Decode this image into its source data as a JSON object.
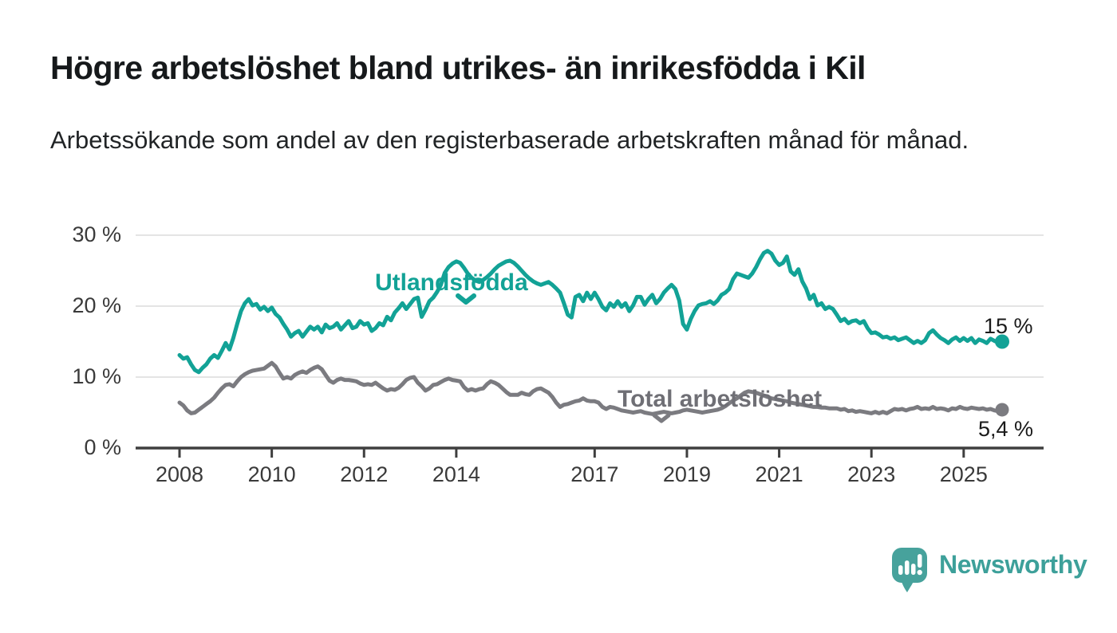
{
  "title": "Högre arbetslöshet bland utrikes- än inrikesfödda i Kil",
  "subtitle": "Arbetssökande som andel av den registerbaserade arbetskraften månad för månad.",
  "branding": {
    "logo_text": "Newsworthy",
    "logo_icon": "speech-bubble-bar-chart",
    "logo_color": "#47a29c",
    "logo_text_color": "#3da09a"
  },
  "colors": {
    "background": "#ffffff",
    "grid": "#dcdcdc",
    "axis": "#3f3f3f",
    "tick_text": "#3a3a3a",
    "title_text": "#16191b",
    "series_teal": "#12a296",
    "series_gray": "#7b7b80"
  },
  "chart_data": {
    "type": "line",
    "title": "Högre arbetslöshet bland utrikes- än inrikesfödda i Kil",
    "subtitle": "Arbetssökande som andel av den registerbaserade arbetskraften månad för månad.",
    "x_unit": "month",
    "x_start": "2008-01",
    "x_end": "2025-11",
    "ylim": [
      0,
      30
    ],
    "grid": "horizontal",
    "legend": "inline-annotations",
    "yticks": {
      "values": [
        0,
        10,
        20,
        30
      ],
      "labels": [
        "0 %",
        "10 %",
        "20 %",
        "30 %"
      ]
    },
    "xticks": {
      "values": [
        2008,
        2010,
        2012,
        2014,
        2017,
        2019,
        2021,
        2023,
        2025
      ],
      "labels": [
        "2008",
        "2010",
        "2012",
        "2014",
        "2017",
        "2019",
        "2021",
        "2023",
        "2025"
      ]
    },
    "series": [
      {
        "name": "Utlandsfödda",
        "color": "#12a296",
        "end_label": "15 %",
        "end_value": 15.0,
        "values": [
          13.1,
          12.6,
          12.8,
          11.8,
          11.0,
          10.7,
          11.3,
          11.8,
          12.6,
          13.1,
          12.7,
          13.7,
          14.8,
          13.9,
          15.5,
          17.5,
          19.3,
          20.4,
          21.0,
          20.1,
          20.3,
          19.5,
          19.9,
          19.3,
          19.8,
          18.9,
          18.4,
          17.5,
          16.7,
          15.7,
          16.2,
          16.5,
          15.7,
          16.4,
          17.1,
          16.7,
          17.1,
          16.3,
          17.4,
          16.9,
          17.1,
          17.6,
          16.7,
          17.3,
          17.9,
          16.9,
          17.1,
          17.9,
          17.4,
          17.6,
          16.5,
          16.9,
          17.6,
          17.3,
          18.5,
          18.0,
          19.1,
          19.7,
          20.4,
          19.6,
          20.3,
          21.0,
          21.2,
          18.5,
          19.5,
          20.7,
          21.2,
          22.0,
          23.0,
          24.7,
          25.5,
          26.0,
          26.3,
          26.1,
          25.4,
          24.6,
          24.0,
          23.6,
          23.4,
          23.7,
          24.1,
          24.6,
          25.2,
          25.7,
          26.0,
          26.3,
          26.4,
          26.1,
          25.6,
          25.0,
          24.4,
          23.9,
          23.5,
          23.2,
          23.0,
          23.2,
          23.4,
          23.0,
          22.5,
          21.9,
          20.4,
          18.8,
          18.4,
          21.3,
          21.6,
          20.7,
          21.9,
          21.0,
          21.9,
          21.0,
          19.9,
          19.4,
          20.4,
          19.9,
          20.7,
          19.9,
          20.4,
          19.3,
          20.1,
          21.3,
          21.3,
          20.2,
          21.0,
          21.6,
          20.4,
          21.0,
          21.9,
          22.5,
          23.0,
          22.4,
          20.8,
          17.5,
          16.7,
          18.2,
          19.3,
          20.1,
          20.3,
          20.4,
          20.7,
          20.3,
          20.8,
          21.6,
          21.9,
          22.4,
          23.8,
          24.6,
          24.4,
          24.2,
          24.0,
          24.6,
          25.5,
          26.6,
          27.5,
          27.8,
          27.4,
          26.4,
          25.8,
          26.1,
          27.0,
          24.9,
          24.4,
          25.2,
          23.5,
          22.5,
          21.0,
          21.6,
          20.1,
          20.4,
          19.6,
          19.9,
          19.6,
          18.8,
          17.9,
          18.2,
          17.6,
          17.9,
          18.0,
          17.6,
          17.9,
          16.9,
          16.2,
          16.3,
          16.0,
          15.6,
          15.7,
          15.4,
          15.6,
          15.2,
          15.4,
          15.6,
          15.2,
          14.8,
          15.1,
          14.8,
          15.2,
          16.2,
          16.6,
          16.0,
          15.5,
          15.2,
          14.8,
          15.3,
          15.6,
          15.1,
          15.5,
          15.1,
          15.5,
          14.8,
          15.3,
          15.1,
          14.8,
          15.4,
          15.1,
          14.9,
          15.0
        ]
      },
      {
        "name": "Total arbetslöshet",
        "color": "#7b7b80",
        "end_label": "5,4 %",
        "end_value": 5.4,
        "values": [
          6.4,
          6.0,
          5.3,
          4.9,
          5.0,
          5.4,
          5.8,
          6.2,
          6.6,
          7.1,
          7.8,
          8.4,
          8.9,
          9.0,
          8.7,
          9.4,
          10.0,
          10.4,
          10.7,
          10.9,
          11.0,
          11.1,
          11.2,
          11.6,
          12.0,
          11.5,
          10.6,
          9.8,
          10.0,
          9.8,
          10.3,
          10.6,
          10.8,
          10.6,
          11.0,
          11.3,
          11.5,
          11.1,
          10.3,
          9.5,
          9.2,
          9.6,
          9.8,
          9.6,
          9.6,
          9.5,
          9.4,
          9.1,
          8.9,
          9.0,
          8.9,
          9.2,
          8.8,
          8.4,
          8.1,
          8.3,
          8.2,
          8.5,
          9.0,
          9.6,
          9.9,
          10.0,
          9.2,
          8.7,
          8.1,
          8.4,
          8.9,
          9.0,
          9.3,
          9.6,
          9.8,
          9.6,
          9.5,
          9.4,
          8.6,
          8.1,
          8.3,
          8.1,
          8.3,
          8.4,
          9.0,
          9.4,
          9.2,
          8.9,
          8.4,
          7.9,
          7.5,
          7.5,
          7.5,
          7.8,
          7.6,
          7.5,
          8.0,
          8.3,
          8.4,
          8.1,
          7.8,
          7.2,
          6.4,
          5.8,
          6.1,
          6.2,
          6.4,
          6.6,
          6.7,
          7.0,
          6.7,
          6.6,
          6.6,
          6.4,
          5.8,
          5.5,
          5.8,
          5.7,
          5.5,
          5.3,
          5.2,
          5.1,
          5.0,
          5.1,
          5.2,
          5.0,
          4.9,
          4.8,
          4.9,
          5.0,
          5.1,
          5.0,
          4.9,
          5.0,
          5.1,
          5.3,
          5.4,
          5.3,
          5.2,
          5.1,
          5.0,
          5.1,
          5.2,
          5.3,
          5.4,
          5.6,
          5.9,
          6.3,
          6.7,
          7.0,
          7.4,
          7.8,
          8.0,
          7.9,
          7.8,
          7.6,
          7.4,
          7.2,
          7.0,
          6.9,
          6.8,
          6.7,
          6.6,
          6.4,
          6.3,
          6.2,
          6.1,
          6.0,
          5.9,
          5.8,
          5.8,
          5.7,
          5.7,
          5.6,
          5.6,
          5.6,
          5.4,
          5.5,
          5.2,
          5.3,
          5.1,
          5.2,
          5.1,
          5.0,
          4.9,
          5.1,
          4.9,
          5.1,
          4.9,
          5.2,
          5.5,
          5.4,
          5.5,
          5.3,
          5.5,
          5.6,
          5.8,
          5.5,
          5.6,
          5.5,
          5.8,
          5.5,
          5.6,
          5.5,
          5.3,
          5.6,
          5.5,
          5.8,
          5.6,
          5.5,
          5.7,
          5.6,
          5.5,
          5.6,
          5.4,
          5.5,
          5.3,
          5.2,
          5.4
        ]
      }
    ]
  }
}
